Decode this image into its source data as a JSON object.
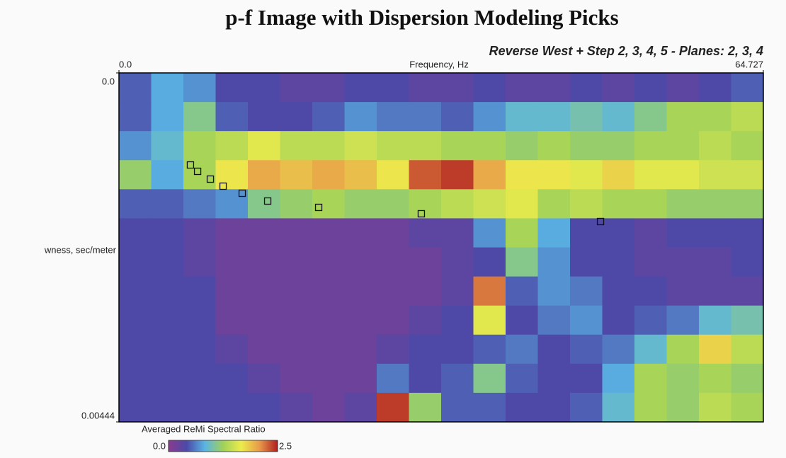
{
  "chart_data": {
    "type": "heatmap",
    "title": "p-f Image with Dispersion Modeling Picks",
    "subtitle": "Reverse West + Step 2, 3, 4, 5 - Planes: 2, 3, 4",
    "x_label": "Frequency, Hz",
    "y_label": "wness, sec/meter",
    "xlim": [
      0,
      64.727
    ],
    "xticks": [
      {
        "value": 0,
        "label": "0.0"
      },
      64.727
    ],
    "ylim": [
      0,
      0.00444
    ],
    "yticks": [
      {
        "value": 0,
        "label": "0.0"
      },
      0.00444
    ],
    "colorbar_label": "Averaged ReMi Spectral Ratio",
    "clim": [
      0,
      2.5
    ],
    "cticks": [
      {
        "value": 0,
        "label": "0.0"
      },
      2.5
    ],
    "colormap": [
      "#8b3a8f",
      "#4b4aa8",
      "#5ab4e4",
      "#9fd15a",
      "#ecec4c",
      "#e89a4a",
      "#b01e1e"
    ],
    "z": [
      [
        0.5,
        0.8,
        0.7,
        0.4,
        0.4,
        0.3,
        0.3,
        0.4,
        0.4,
        0.3,
        0.3,
        0.4,
        0.3,
        0.3,
        0.4,
        0.3,
        0.4,
        0.3,
        0.4,
        0.5
      ],
      [
        0.5,
        0.8,
        1.1,
        0.5,
        0.4,
        0.4,
        0.5,
        0.7,
        0.6,
        0.6,
        0.5,
        0.7,
        0.9,
        0.9,
        1.0,
        0.9,
        1.1,
        1.3,
        1.3,
        1.4
      ],
      [
        0.7,
        0.9,
        1.3,
        1.4,
        1.6,
        1.4,
        1.4,
        1.5,
        1.4,
        1.4,
        1.3,
        1.3,
        1.2,
        1.3,
        1.2,
        1.2,
        1.3,
        1.3,
        1.4,
        1.3
      ],
      [
        1.2,
        0.8,
        1.3,
        1.7,
        2.0,
        1.9,
        2.0,
        1.9,
        1.7,
        2.3,
        2.4,
        2.0,
        1.7,
        1.7,
        1.6,
        1.8,
        1.6,
        1.6,
        1.5,
        1.5
      ],
      [
        0.5,
        0.5,
        0.6,
        0.7,
        1.1,
        1.2,
        1.3,
        1.2,
        1.2,
        1.3,
        1.4,
        1.5,
        1.6,
        1.3,
        1.4,
        1.3,
        1.3,
        1.2,
        1.2,
        1.2
      ],
      [
        0.4,
        0.4,
        0.3,
        0.2,
        0.2,
        0.2,
        0.2,
        0.2,
        0.2,
        0.3,
        0.3,
        0.7,
        1.3,
        0.8,
        0.4,
        0.4,
        0.3,
        0.4,
        0.4,
        0.4
      ],
      [
        0.4,
        0.4,
        0.3,
        0.2,
        0.2,
        0.2,
        0.2,
        0.2,
        0.2,
        0.2,
        0.3,
        0.4,
        1.1,
        0.7,
        0.4,
        0.4,
        0.3,
        0.3,
        0.3,
        0.4
      ],
      [
        0.4,
        0.4,
        0.4,
        0.2,
        0.2,
        0.2,
        0.2,
        0.2,
        0.2,
        0.2,
        0.3,
        2.2,
        0.5,
        0.7,
        0.6,
        0.4,
        0.4,
        0.3,
        0.3,
        0.3
      ],
      [
        0.4,
        0.4,
        0.4,
        0.2,
        0.2,
        0.2,
        0.2,
        0.2,
        0.2,
        0.3,
        0.4,
        1.6,
        0.4,
        0.6,
        0.7,
        0.4,
        0.5,
        0.6,
        0.9,
        1.0
      ],
      [
        0.4,
        0.4,
        0.4,
        0.3,
        0.2,
        0.2,
        0.2,
        0.2,
        0.3,
        0.4,
        0.4,
        0.5,
        0.6,
        0.4,
        0.5,
        0.6,
        0.9,
        1.3,
        1.8,
        1.4
      ],
      [
        0.4,
        0.4,
        0.4,
        0.4,
        0.3,
        0.2,
        0.2,
        0.2,
        0.6,
        0.4,
        0.5,
        1.1,
        0.5,
        0.4,
        0.4,
        0.8,
        1.3,
        1.2,
        1.3,
        1.2
      ],
      [
        0.4,
        0.4,
        0.4,
        0.4,
        0.4,
        0.3,
        0.2,
        0.3,
        2.4,
        1.2,
        0.5,
        0.5,
        0.4,
        0.4,
        0.5,
        0.9,
        1.3,
        1.2,
        1.4,
        1.3
      ]
    ],
    "picks": {
      "x": [
        7.18,
        7.9,
        9.18,
        10.46,
        12.38,
        14.94,
        20.06,
        30.37,
        48.37
      ],
      "values": [
        0.001171,
        0.001252,
        0.001351,
        0.001441,
        0.001531,
        0.00163,
        0.001711,
        0.001792,
        0.001891
      ]
    }
  }
}
